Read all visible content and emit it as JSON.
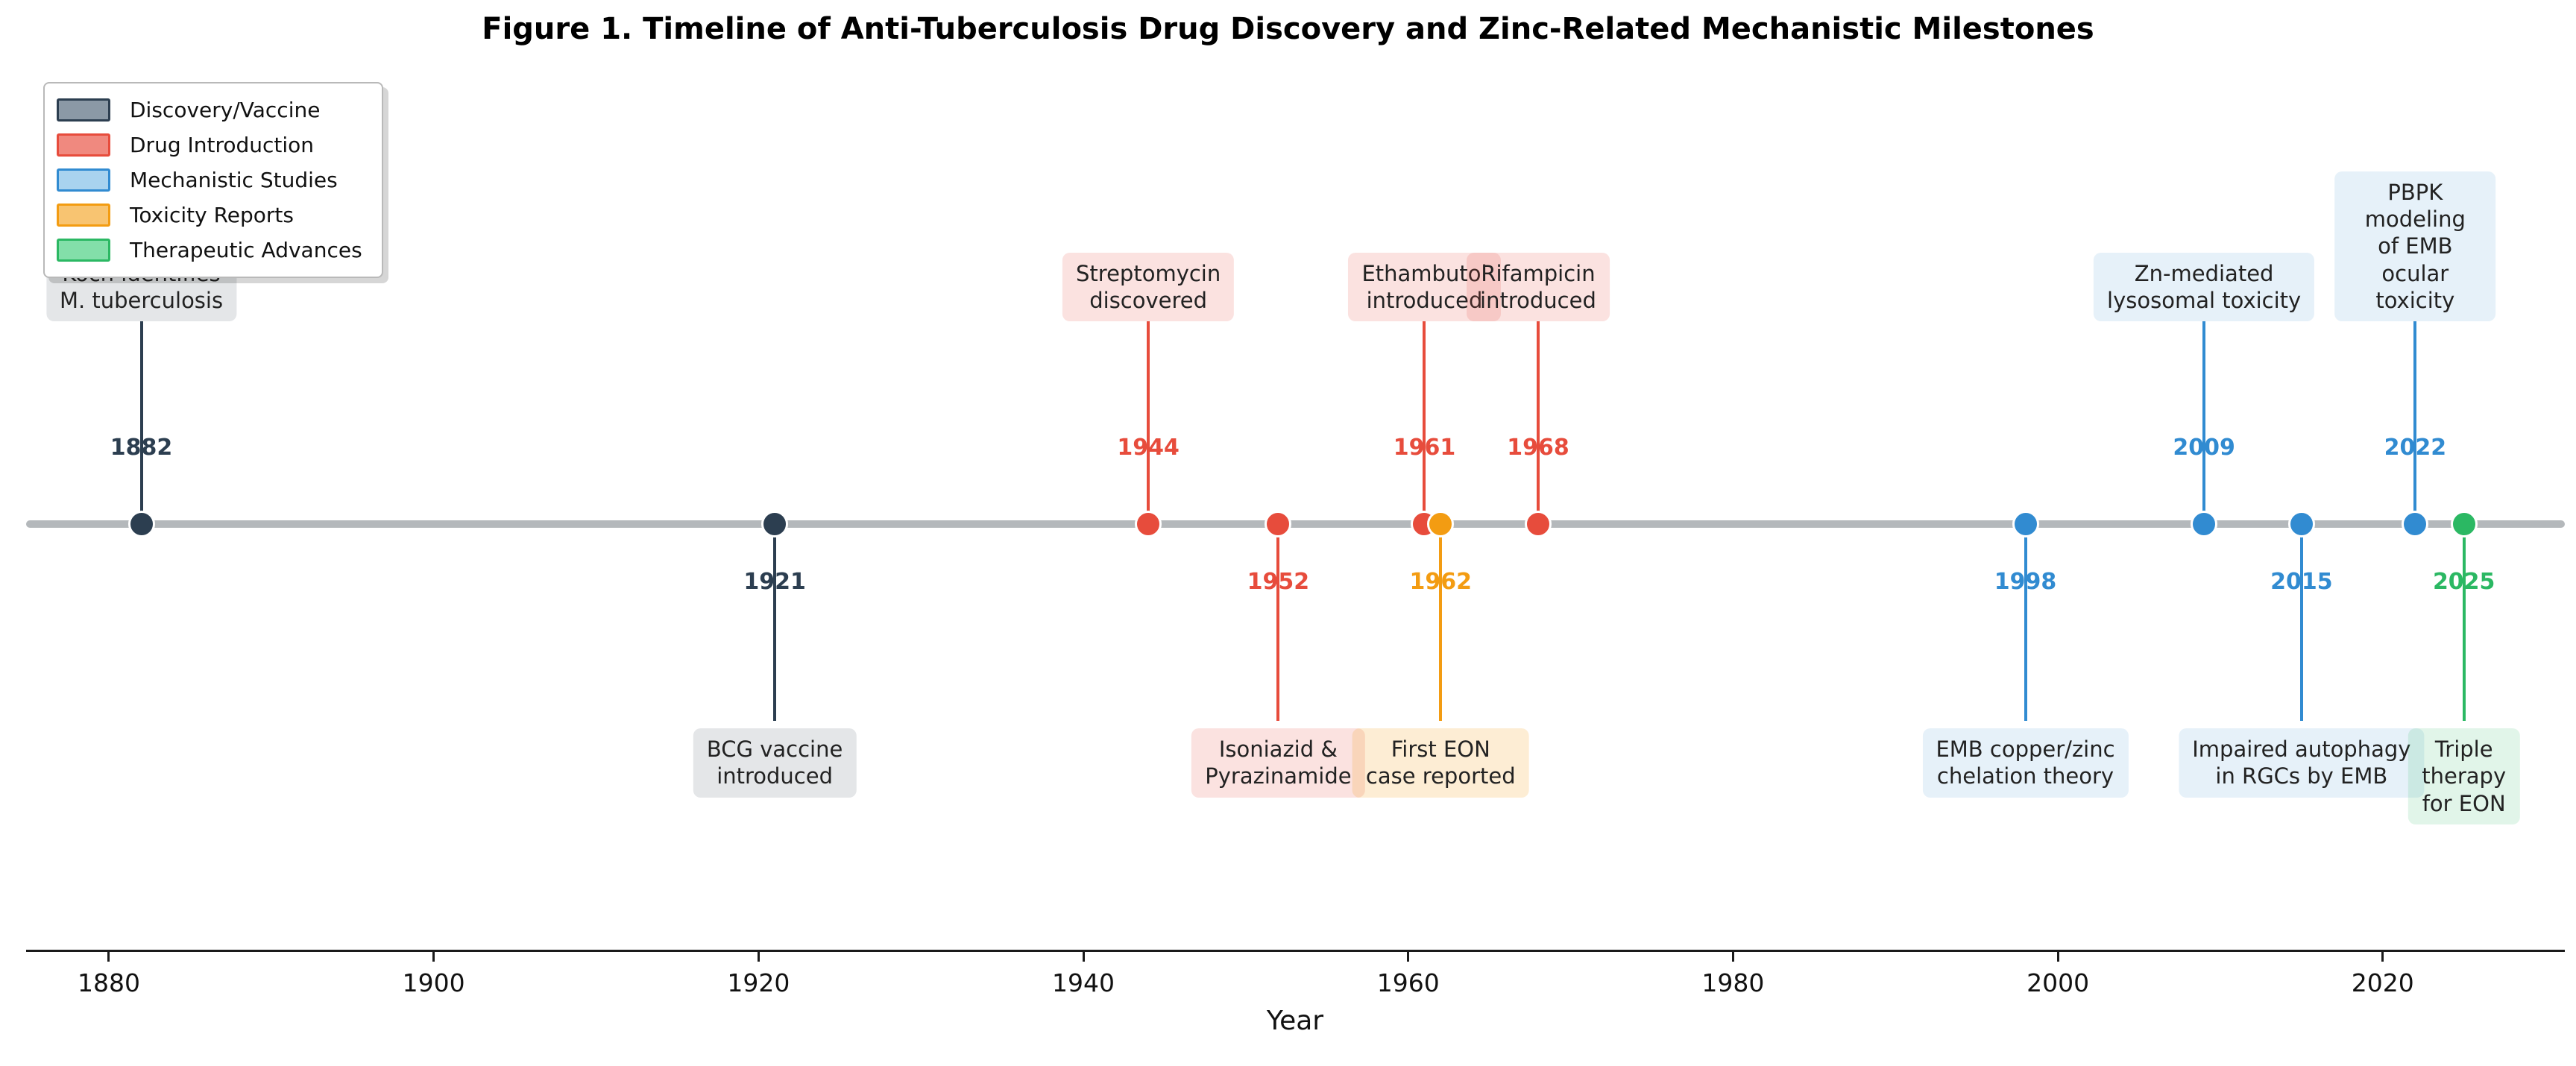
{
  "title": "Figure 1. Timeline of Anti-Tuberculosis Drug Discovery and Zinc-Related Mechanistic Milestones",
  "xlabel": "Year",
  "legend": {
    "order": [
      "discovery",
      "drug",
      "mechanistic",
      "toxicity",
      "therapeutic"
    ]
  },
  "categories": {
    "discovery": {
      "legend_label": "Discovery/Vaccine",
      "color": "#2c3e50",
      "box_fill": "rgba(44,62,80,0.13)",
      "patch_fill": "#8b99a6"
    },
    "drug": {
      "legend_label": "Drug Introduction",
      "color": "#e74c3c",
      "box_fill": "rgba(231,76,60,0.16)",
      "patch_fill": "#f0897f"
    },
    "mechanistic": {
      "legend_label": "Mechanistic Studies",
      "color": "#318bd1",
      "box_fill": "rgba(49,139,209,0.12)",
      "patch_fill": "#a9d3ef"
    },
    "toxicity": {
      "legend_label": "Toxicity Reports",
      "color": "#f39c12",
      "box_fill": "rgba(243,156,18,0.18)",
      "patch_fill": "#f8c471"
    },
    "therapeutic": {
      "legend_label": "Therapeutic Advances",
      "color": "#2bb863",
      "box_fill": "rgba(43,184,99,0.14)",
      "patch_fill": "#83dfa9"
    }
  },
  "axis": {
    "xmin": 1873.3,
    "xmax": 2031.9,
    "ticks": [
      "1880",
      "1900",
      "1920",
      "1940",
      "1960",
      "1980",
      "2000",
      "2020"
    ]
  },
  "chart_data": {
    "type": "scatter",
    "subtype": "timeline",
    "title": "Figure 1. Timeline of Anti-Tuberculosis Drug Discovery and Zinc-Related Mechanistic Milestones",
    "xlabel": "Year",
    "xlim": [
      1873,
      2032
    ],
    "legend_position": "upper left",
    "grid": false,
    "events": [
      {
        "year": 1882,
        "label": "Koch identifies\nM. tuberculosis",
        "category": "discovery",
        "side": "above"
      },
      {
        "year": 1921,
        "label": "BCG vaccine\nintroduced",
        "category": "discovery",
        "side": "below"
      },
      {
        "year": 1944,
        "label": "Streptomycin\ndiscovered",
        "category": "drug",
        "side": "above"
      },
      {
        "year": 1952,
        "label": "Isoniazid &\nPyrazinamide",
        "category": "drug",
        "side": "below"
      },
      {
        "year": 1961,
        "label": "Ethambutol\nintroduced",
        "category": "drug",
        "side": "above"
      },
      {
        "year": 1962,
        "label": "First EON\ncase reported",
        "category": "toxicity",
        "side": "below"
      },
      {
        "year": 1968,
        "label": "Rifampicin\nintroduced",
        "category": "drug",
        "side": "above"
      },
      {
        "year": 1998,
        "label": "EMB copper/zinc\nchelation theory",
        "category": "mechanistic",
        "side": "below"
      },
      {
        "year": 2009,
        "label": "Zn-mediated\nlysosomal toxicity",
        "category": "mechanistic",
        "side": "above"
      },
      {
        "year": 2015,
        "label": "Impaired autophagy\nin RGCs by EMB",
        "category": "mechanistic",
        "side": "below"
      },
      {
        "year": 2022,
        "label": "PBPK modeling\nof EMB ocular toxicity",
        "category": "mechanistic",
        "side": "above"
      },
      {
        "year": 2025,
        "label": "Triple therapy\nfor EON",
        "category": "therapeutic",
        "side": "below"
      }
    ]
  }
}
